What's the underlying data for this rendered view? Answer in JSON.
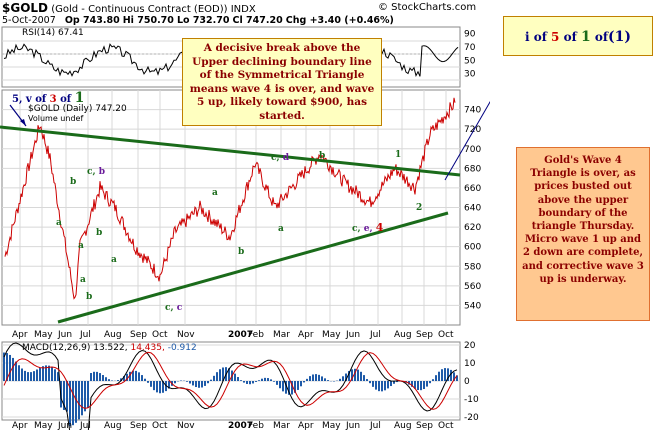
{
  "header": {
    "symbol": "$GOLD",
    "name": "(Gold - Continuous Contract (EOD))",
    "exchange": "INDX",
    "watermark": "© StockCharts.com",
    "date": "5-Oct-2007",
    "op": "Op 743.80",
    "hi": "Hi 750.70",
    "lo": "Lo 732.70",
    "cl": "Cl 747.20",
    "chg": "Chg +3.40 (+0.46%)"
  },
  "rsi_label": "RSI(14) 67.41",
  "price_legend": {
    "label": "$GOLD (Daily) 747.20",
    "volume": "Volume undef"
  },
  "macd_legend": {
    "prefix": "MACD(12,26,9)",
    "v1": "13.522,",
    "v2": "14.435,",
    "v3": "-0.912"
  },
  "center_note": "A decisive break above the Upper declining boundary line of the Symmetrical Triangle means wave 4 is over, and wave 5 up, likely toward $900, has started.",
  "top_right_note": {
    "a": "i of ",
    "b": "5",
    "c": " of ",
    "d": "1",
    "e": " of",
    "f": "(1)"
  },
  "right_note": "Gold's Wave 4 Triangle is over, as prices busted out above the upper boundary of the triangle Thursday. Micro wave 1 up and 2 down are complete, and corrective wave 3 up is underway.",
  "wave_top_left": {
    "a": "5, v of ",
    "b": "3",
    "c": " of ",
    "d": "1"
  },
  "colors": {
    "price": "#cc0000",
    "trend": "#1a6b1a",
    "navy": "#000080",
    "rsi_line": "#000000",
    "macd_red": "#cc0000",
    "hist": "#1e5aa8"
  },
  "labels": {
    "b1": "b",
    "a1": "a",
    "b2": "b",
    "a2": "a",
    "a3": "a",
    "b3": "b",
    "c1": "c, ",
    "b4": "b",
    "a4": "a",
    "b5": "b",
    "c2": "c, ",
    "c3": "c",
    "a5": "a",
    "c4": "c, ",
    "d1": "d",
    "b6": "b",
    "a6": "a",
    "c5": "c, ",
    "e1": "e, ",
    "w4": "4",
    "w1": "1",
    "w2": "2",
    "b7": "b",
    "d2": "d"
  },
  "chart_data": {
    "type": "line",
    "title": "$GOLD (Gold - Continuous Contract (EOD))",
    "ylim": [
      520,
      760
    ],
    "price_ticks": [
      540,
      560,
      580,
      600,
      620,
      640,
      660,
      680,
      700,
      720,
      740
    ],
    "rsi_ticks": [
      30,
      50,
      70,
      90
    ],
    "macd_ticks": [
      -20,
      -10,
      0,
      10,
      20
    ],
    "months": [
      "Apr",
      "May",
      "Jun",
      "Jul",
      "Aug",
      "Sep",
      "Oct",
      "Nov",
      "2007",
      "Feb",
      "Mar",
      "Apr",
      "May",
      "Jun",
      "Jul",
      "Aug",
      "Sep",
      "Oct"
    ],
    "series": [
      {
        "name": "$GOLD (Daily)",
        "x": [
          "Apr 2006",
          "May 2006",
          "May 2006",
          "Jun 2006",
          "Jun 2006",
          "Jul 2006",
          "Aug 2006",
          "Sep 2006",
          "Oct 2006",
          "Nov 2006",
          "Dec 2006",
          "Jan 2007",
          "Feb 2007",
          "Mar 2007",
          "Apr 2007",
          "May 2007",
          "Jun 2007",
          "Jul 2007",
          "Aug 2007",
          "Sep 2007",
          "Oct 2007"
        ],
        "values": [
          590,
          725,
          690,
          545,
          600,
          660,
          640,
          600,
          570,
          615,
          640,
          610,
          685,
          640,
          695,
          665,
          645,
          680,
          660,
          715,
          747
        ]
      }
    ]
  }
}
